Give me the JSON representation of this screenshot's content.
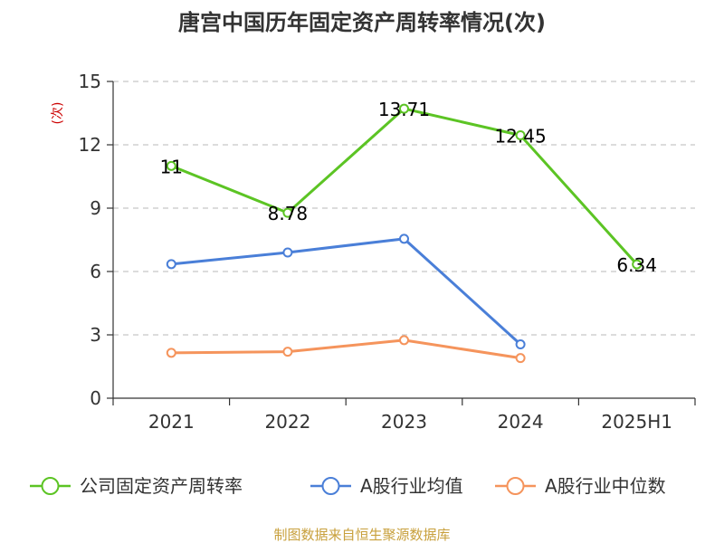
{
  "chart_data": {
    "type": "line",
    "title": "唐宫中国历年固定资产周转率情况(次)",
    "ylabel": "(次)",
    "categories": [
      "2021",
      "2022",
      "2023",
      "2024",
      "2025H1"
    ],
    "ylim": [
      0,
      15
    ],
    "yticks": [
      0,
      3,
      6,
      9,
      12,
      15
    ],
    "grid": true,
    "legend_position": "bottom",
    "series": [
      {
        "name": "公司固定资产周转率",
        "color": "#5cc424",
        "values": [
          11,
          8.78,
          13.71,
          12.45,
          6.34
        ],
        "labels": [
          "11",
          "8.78",
          "13.71",
          "12.45",
          "6.34"
        ]
      },
      {
        "name": "A股行业均值",
        "color": "#4a7fd8",
        "values": [
          6.35,
          6.9,
          7.55,
          2.55,
          null
        ]
      },
      {
        "name": "A股行业中位数",
        "color": "#f5945c",
        "values": [
          2.15,
          2.2,
          2.75,
          1.9,
          null
        ]
      }
    ],
    "source": "制图数据来自恒生聚源数据库"
  }
}
